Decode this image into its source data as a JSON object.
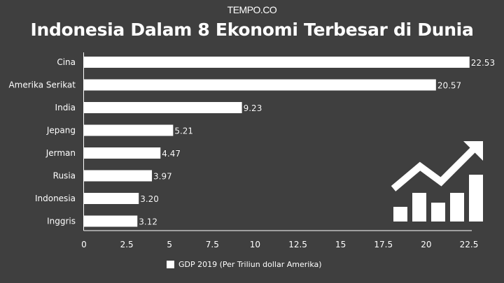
{
  "brand": {
    "logo_text": "TEMPO.CO"
  },
  "chart_data": {
    "type": "bar",
    "orientation": "horizontal",
    "title": "Indonesia Dalam 8 Ekonomi Terbesar di Dunia",
    "categories": [
      "Cina",
      "Amerika Serikat",
      "India",
      "Jepang",
      "Jerman",
      "Rusia",
      "Indonesia",
      "Inggris"
    ],
    "series": [
      {
        "name": "GDP 2019 (Per Triliun dollar Amerika)",
        "values": [
          22.53,
          20.57,
          9.23,
          5.21,
          4.47,
          3.97,
          3.2,
          3.12
        ]
      }
    ],
    "value_labels": [
      "22.53",
      "20.57",
      "9.23",
      "5.21",
      "4.47",
      "3.97",
      "3.20",
      "3.12"
    ],
    "xlim": [
      0,
      22.5
    ],
    "x_ticks": [
      "0",
      "2.5",
      "5",
      "7.5",
      "10",
      "12.5",
      "15",
      "17.5",
      "20",
      "22.5"
    ],
    "grid": false,
    "legend_position": "bottom",
    "bar_color": "#ffffff",
    "background_color": "#3f3f3f"
  },
  "decoration": {
    "icon": "growth-chart-icon"
  }
}
